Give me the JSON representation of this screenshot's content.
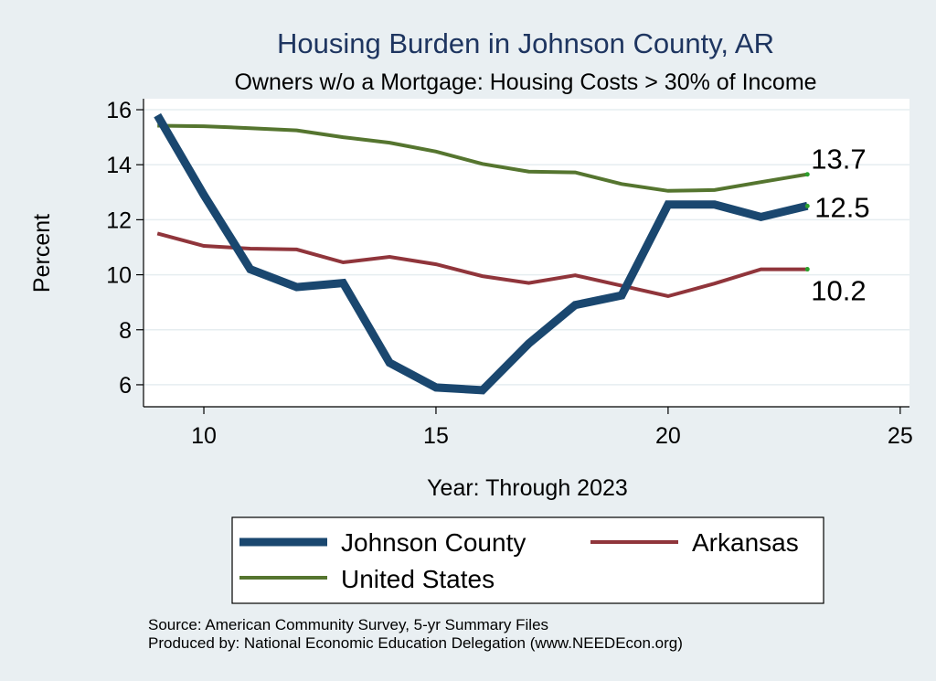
{
  "chart_data": {
    "type": "line",
    "title": "Housing Burden in Johnson County, AR",
    "subtitle": "Owners w/o a Mortgage: Housing Costs > 30% of Income",
    "xlabel": "Year: Through 2023",
    "ylabel": "Percent",
    "xlim": [
      8.7,
      25.2
    ],
    "ylim": [
      5.2,
      16.4
    ],
    "xticks": [
      10,
      15,
      20,
      25
    ],
    "yticks": [
      6,
      8,
      10,
      12,
      14,
      16
    ],
    "grid": true,
    "x": [
      9,
      10,
      11,
      12,
      13,
      14,
      15,
      16,
      17,
      18,
      19,
      20,
      21,
      22,
      23
    ],
    "series": [
      {
        "name": "Johnson County",
        "color": "#1a476f",
        "values": [
          15.8,
          12.9,
          10.2,
          9.55,
          9.7,
          6.8,
          5.9,
          5.8,
          7.5,
          8.9,
          9.25,
          12.55,
          12.55,
          12.1,
          12.5
        ],
        "end_label": "12.5"
      },
      {
        "name": "Arkansas",
        "color": "#90353b",
        "values": [
          11.5,
          11.05,
          10.95,
          10.92,
          10.45,
          10.65,
          10.38,
          9.95,
          9.7,
          9.98,
          9.6,
          9.22,
          9.68,
          10.2,
          10.2
        ],
        "end_label": "10.2"
      },
      {
        "name": "United States",
        "color": "#55752f",
        "values": [
          15.42,
          15.4,
          15.33,
          15.25,
          15.0,
          14.8,
          14.48,
          14.03,
          13.75,
          13.72,
          13.3,
          13.05,
          13.08,
          13.37,
          13.65
        ],
        "end_label": "13.7"
      }
    ],
    "legend": [
      "Johnson County",
      "Arkansas",
      "United States"
    ],
    "legend_position": "bottom"
  },
  "notes": {
    "source": "Source: American Community Survey, 5-yr Summary Files",
    "produced_by": "Produced by: National Economic Education Delegation (www.NEEDEcon.org)"
  }
}
